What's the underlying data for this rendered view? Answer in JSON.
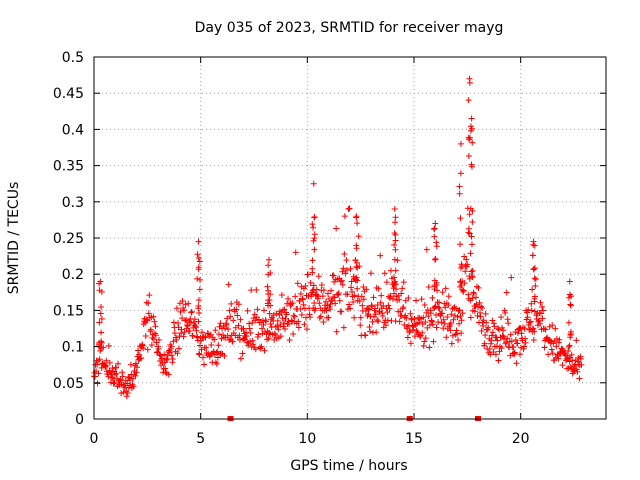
{
  "chart_data": {
    "type": "scatter",
    "title": "Day 035 of 2023, SRMTID for receiver mayg",
    "xlabel": "GPS time / hours",
    "ylabel": "SRMTID / TECUs",
    "xlim": [
      0,
      24
    ],
    "ylim": [
      0,
      0.5
    ],
    "xticks": [
      0,
      5,
      10,
      15,
      20
    ],
    "xtick_labels": [
      "0",
      "5",
      "10",
      "15",
      "20"
    ],
    "yticks": [
      0,
      0.05,
      0.1,
      0.15,
      0.2,
      0.25,
      0.3,
      0.35,
      0.4,
      0.45,
      0.5
    ],
    "ytick_labels": [
      "0",
      "0.05",
      "0.1",
      "0.15",
      "0.2",
      "0.25",
      "0.3",
      "0.35",
      "0.4",
      "0.45",
      "0.5"
    ],
    "grid": true,
    "marker": "+",
    "color": "#ff0000",
    "series_trend": {
      "x": [
        0.0,
        0.3,
        0.6,
        0.9,
        1.2,
        1.5,
        1.8,
        2.1,
        2.4,
        2.7,
        3.0,
        3.3,
        3.6,
        3.9,
        4.2,
        4.5,
        4.8,
        5.1,
        5.4,
        5.7,
        6.0,
        6.3,
        6.6,
        6.9,
        7.2,
        7.5,
        7.8,
        8.1,
        8.4,
        8.7,
        9.0,
        9.3,
        9.6,
        9.9,
        10.2,
        10.5,
        10.8,
        11.1,
        11.4,
        11.7,
        12.0,
        12.3,
        12.6,
        12.9,
        13.2,
        13.5,
        13.8,
        14.1,
        14.4,
        14.7,
        15.0,
        15.3,
        15.6,
        15.9,
        16.2,
        16.5,
        16.8,
        17.1,
        17.4,
        17.7,
        18.0,
        18.3,
        18.6,
        18.9,
        19.2,
        19.5,
        19.8,
        20.1,
        20.4,
        20.7,
        21.0,
        21.3,
        21.6,
        21.9,
        22.2,
        22.5,
        22.8
      ],
      "y": [
        0.06,
        0.08,
        0.07,
        0.06,
        0.055,
        0.05,
        0.045,
        0.08,
        0.14,
        0.13,
        0.09,
        0.07,
        0.09,
        0.12,
        0.14,
        0.13,
        0.12,
        0.1,
        0.1,
        0.1,
        0.11,
        0.12,
        0.13,
        0.12,
        0.11,
        0.12,
        0.13,
        0.13,
        0.13,
        0.13,
        0.14,
        0.14,
        0.15,
        0.16,
        0.17,
        0.16,
        0.16,
        0.17,
        0.17,
        0.18,
        0.18,
        0.18,
        0.16,
        0.14,
        0.15,
        0.16,
        0.16,
        0.17,
        0.15,
        0.13,
        0.12,
        0.13,
        0.14,
        0.15,
        0.16,
        0.14,
        0.13,
        0.14,
        0.2,
        0.17,
        0.15,
        0.13,
        0.12,
        0.11,
        0.12,
        0.11,
        0.11,
        0.12,
        0.13,
        0.14,
        0.13,
        0.11,
        0.1,
        0.09,
        0.08,
        0.07,
        0.07
      ]
    },
    "spikes": [
      {
        "x": 0.3,
        "y": 0.19
      },
      {
        "x": 4.9,
        "y": 0.245
      },
      {
        "x": 8.2,
        "y": 0.22
      },
      {
        "x": 10.3,
        "y": 0.325
      },
      {
        "x": 12.3,
        "y": 0.28
      },
      {
        "x": 14.1,
        "y": 0.29
      },
      {
        "x": 16.0,
        "y": 0.27
      },
      {
        "x": 17.2,
        "y": 0.38
      },
      {
        "x": 17.6,
        "y": 0.47
      },
      {
        "x": 17.7,
        "y": 0.415
      },
      {
        "x": 20.6,
        "y": 0.245
      },
      {
        "x": 22.3,
        "y": 0.19
      }
    ],
    "zero_points": [
      {
        "x": 6.4,
        "y": 0.0
      },
      {
        "x": 14.8,
        "y": 0.0
      },
      {
        "x": 18.0,
        "y": 0.0
      }
    ]
  }
}
